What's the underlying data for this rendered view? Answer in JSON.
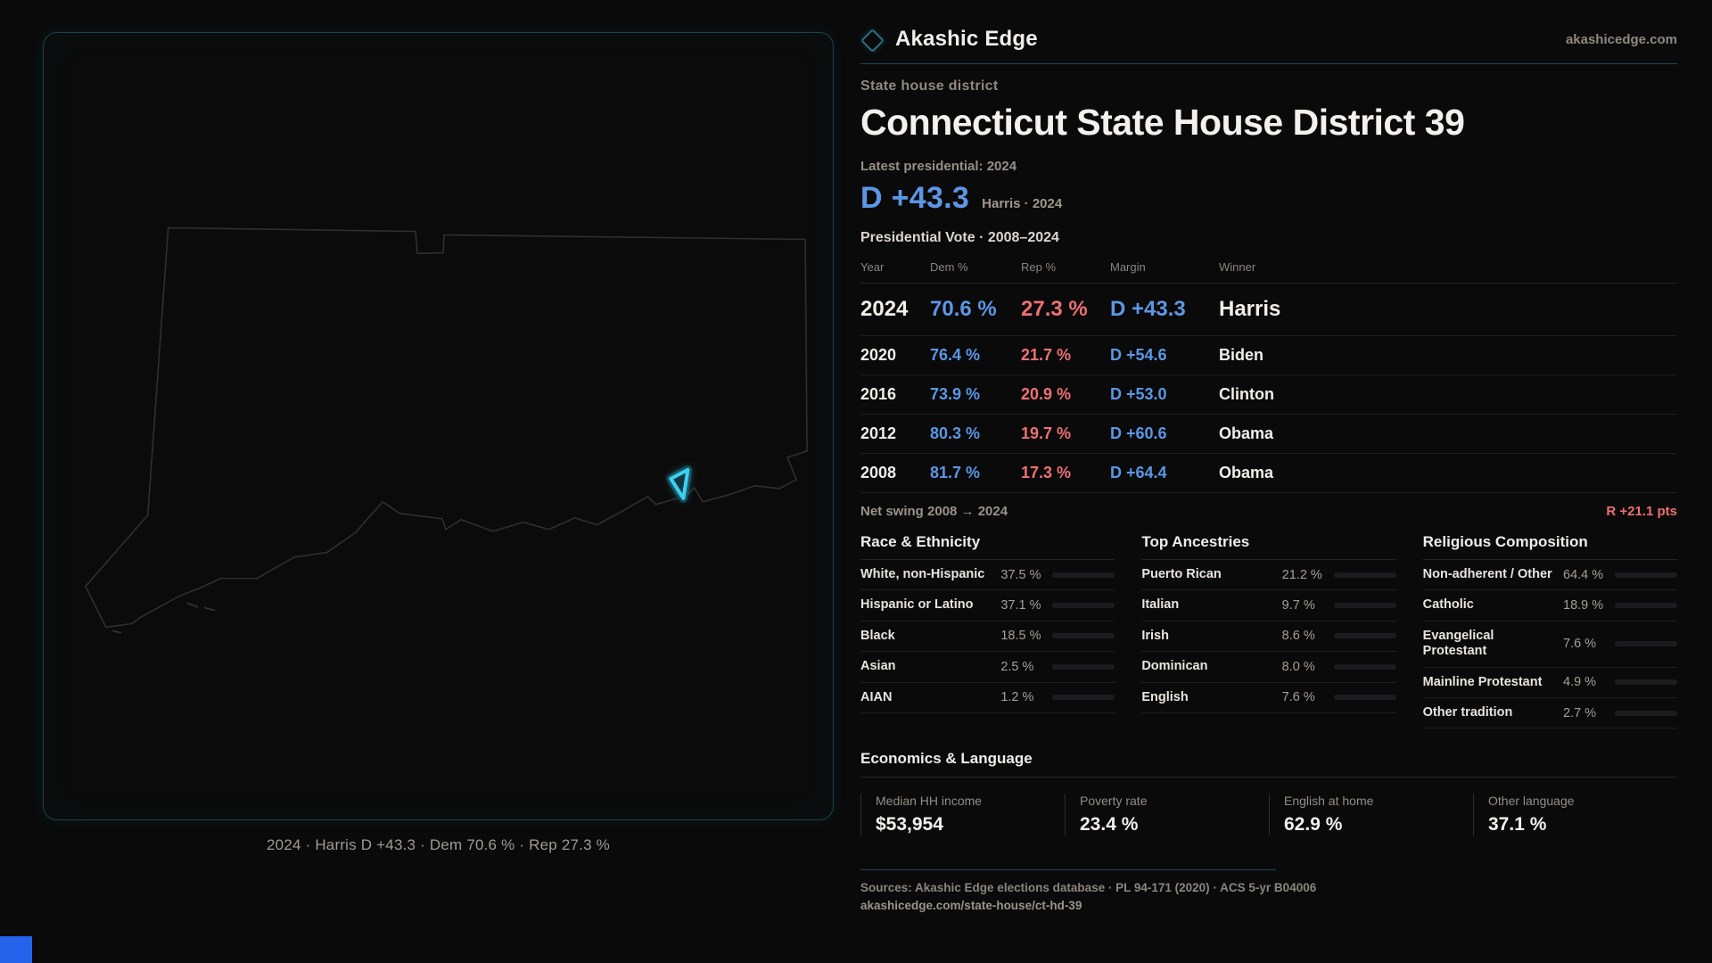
{
  "brand": {
    "name": "Akashic Edge",
    "domain": "akashicedge.com"
  },
  "map": {
    "caption": "2024 · Harris D +43.3 · Dem 70.6 % · Rep 27.3 %"
  },
  "header": {
    "eyebrow": "State house district",
    "title": "Connecticut State House District 39",
    "latest_label": "Latest presidential: 2024",
    "margin_value": "D +43.3",
    "margin_note": "Harris · 2024"
  },
  "vote_table": {
    "section_title": "Presidential Vote · 2008–2024",
    "columns": [
      "Year",
      "Dem %",
      "Rep %",
      "Margin",
      "Winner"
    ],
    "rows": [
      {
        "year": "2024",
        "dem": "70.6 %",
        "rep": "27.3 %",
        "margin": "D +43.3",
        "winner": "Harris",
        "size": "big"
      },
      {
        "year": "2020",
        "dem": "76.4 %",
        "rep": "21.7 %",
        "margin": "D +54.6",
        "winner": "Biden",
        "size": ""
      },
      {
        "year": "2016",
        "dem": "73.9 %",
        "rep": "20.9 %",
        "margin": "D +53.0",
        "winner": "Clinton",
        "size": ""
      },
      {
        "year": "2012",
        "dem": "80.3 %",
        "rep": "19.7 %",
        "margin": "D +60.6",
        "winner": "Obama",
        "size": ""
      },
      {
        "year": "2008",
        "dem": "81.7 %",
        "rep": "17.3 %",
        "margin": "D +64.4",
        "winner": "Obama",
        "size": ""
      }
    ],
    "swing_label": "Net swing 2008 → 2024",
    "swing_value": "R +21.1 pts"
  },
  "demographics": {
    "race": {
      "title": "Race & Ethnicity",
      "rows": [
        {
          "label": "White, non-Hispanic",
          "value": "37.5 %",
          "pct": 37.5,
          "color": "#8ca6bf"
        },
        {
          "label": "Hispanic or Latino",
          "value": "37.1 %",
          "pct": 37.1,
          "color": "#dd9a2f"
        },
        {
          "label": "Black",
          "value": "18.5 %",
          "pct": 18.5,
          "color": "#9c8df0"
        },
        {
          "label": "Asian",
          "value": "2.5 %",
          "pct": 2.5,
          "color": "#2bbf8a"
        },
        {
          "label": "AIAN",
          "value": "1.2 %",
          "pct": 1.2,
          "color": "#c26a2e"
        }
      ]
    },
    "ancestry": {
      "title": "Top Ancestries",
      "rows": [
        {
          "label": "Puerto Rican",
          "value": "21.2 %",
          "pct": 21.2,
          "color": "#e2a12e"
        },
        {
          "label": "Italian",
          "value": "9.7 %",
          "pct": 9.7,
          "color": "#9fb4cc"
        },
        {
          "label": "Irish",
          "value": "8.6 %",
          "pct": 8.6,
          "color": "#9fb4cc"
        },
        {
          "label": "Dominican",
          "value": "8.0 %",
          "pct": 8.0,
          "color": "#e2a12e"
        },
        {
          "label": "English",
          "value": "7.6 %",
          "pct": 7.6,
          "color": "#9fb4cc"
        }
      ]
    },
    "religion": {
      "title": "Religious Composition",
      "rows": [
        {
          "label": "Non-adherent / Other",
          "value": "64.4 %",
          "pct": 64.4,
          "color": "#76879a"
        },
        {
          "label": "Catholic",
          "value": "18.9 %",
          "pct": 18.9,
          "color": "#e6c22e"
        },
        {
          "label": "Evangelical Protestant",
          "value": "7.6 %",
          "pct": 7.6,
          "color": "#ea6d6d"
        },
        {
          "label": "Mainline Protestant",
          "value": "4.9 %",
          "pct": 4.9,
          "color": "#4a86e8"
        },
        {
          "label": "Other tradition",
          "value": "2.7 %",
          "pct": 2.7,
          "color": "#8a97a4"
        }
      ]
    }
  },
  "economics": {
    "title": "Economics & Language",
    "stats": [
      {
        "label": "Median HH income",
        "value": "$53,954"
      },
      {
        "label": "Poverty rate",
        "value": "23.4 %"
      },
      {
        "label": "English at home",
        "value": "62.9 %"
      },
      {
        "label": "Other language",
        "value": "37.1 %"
      }
    ]
  },
  "footer": {
    "sources": "Sources: Akashic Edge elections database · PL 94-171 (2020) · ACS 5-yr B04006",
    "permalink": "akashicedge.com/state-house/ct-hd-39"
  },
  "colors": {
    "dem_blue": "#5c97e6",
    "rep_red": "#ee7173",
    "district_cyan": "#3cd0f0",
    "panel_teal": "#17454f",
    "accent_corner": "#2563eb"
  }
}
